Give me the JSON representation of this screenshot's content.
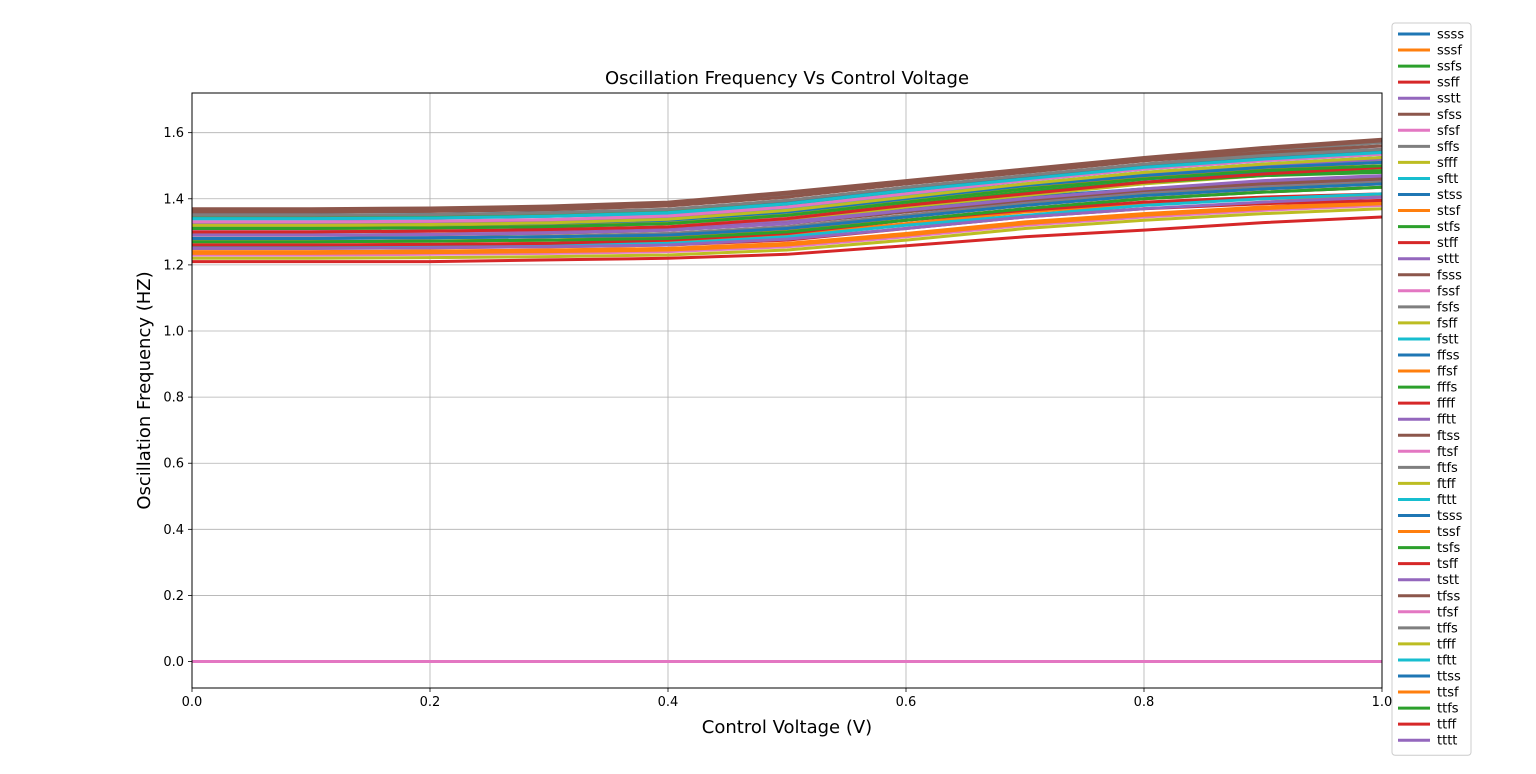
{
  "chart_data": {
    "type": "line",
    "title": "Oscillation Frequency Vs Control Voltage",
    "xlabel": "Control Voltage (V)",
    "ylabel": "Oscillation Frequency (HZ)",
    "xlim": [
      0.0,
      1.0
    ],
    "ylim": [
      -0.08,
      1.72
    ],
    "x_ticks": [
      "0.0",
      "0.2",
      "0.4",
      "0.6",
      "0.8",
      "1.0"
    ],
    "y_ticks": [
      "0.0",
      "0.2",
      "0.4",
      "0.6",
      "0.8",
      "1.0",
      "1.2",
      "1.4",
      "1.6"
    ],
    "grid": true,
    "legend_position": "right, outside plot",
    "x": [
      0.0,
      0.1,
      0.2,
      0.3,
      0.4,
      0.5,
      0.6,
      0.7,
      0.8,
      0.9,
      1.0
    ],
    "palette": [
      "#1f77b4",
      "#ff7f0e",
      "#2ca02c",
      "#d62728",
      "#9467bd",
      "#8c564b",
      "#e377c2",
      "#7f7f7f",
      "#bcbd22",
      "#17becf"
    ],
    "series": [
      {
        "name": "ssss",
        "values": [
          1.3,
          1.3,
          1.302,
          1.305,
          1.31,
          1.33,
          1.37,
          1.405,
          1.43,
          1.445,
          1.46
        ]
      },
      {
        "name": "sssf",
        "values": [
          1.24,
          1.24,
          1.242,
          1.245,
          1.25,
          1.265,
          1.295,
          1.33,
          1.355,
          1.375,
          1.39
        ]
      },
      {
        "name": "ssfs",
        "values": [
          1.31,
          1.31,
          1.312,
          1.315,
          1.325,
          1.35,
          1.39,
          1.425,
          1.45,
          1.47,
          1.48
        ]
      },
      {
        "name": "ssff",
        "values": [
          1.25,
          1.25,
          1.252,
          1.255,
          1.26,
          1.275,
          1.31,
          1.345,
          1.37,
          1.385,
          1.395
        ]
      },
      {
        "name": "sstt",
        "values": [
          1.28,
          1.28,
          1.282,
          1.285,
          1.295,
          1.315,
          1.35,
          1.39,
          1.42,
          1.44,
          1.455
        ]
      },
      {
        "name": "sfss",
        "values": [
          1.37,
          1.37,
          1.372,
          1.378,
          1.39,
          1.42,
          1.455,
          1.49,
          1.525,
          1.555,
          1.58
        ]
      },
      {
        "name": "sfsf",
        "values": [
          1.3,
          1.3,
          1.302,
          1.305,
          1.315,
          1.345,
          1.39,
          1.43,
          1.46,
          1.48,
          1.5
        ]
      },
      {
        "name": "sffs",
        "values": [
          1.36,
          1.36,
          1.362,
          1.368,
          1.38,
          1.41,
          1.445,
          1.48,
          1.515,
          1.545,
          1.57
        ]
      },
      {
        "name": "sfff",
        "values": [
          1.29,
          1.29,
          1.292,
          1.295,
          1.305,
          1.335,
          1.375,
          1.41,
          1.445,
          1.47,
          1.49
        ]
      },
      {
        "name": "sftt",
        "values": [
          1.33,
          1.33,
          1.332,
          1.337,
          1.345,
          1.37,
          1.41,
          1.445,
          1.48,
          1.505,
          1.525
        ]
      },
      {
        "name": "stss",
        "values": [
          1.33,
          1.33,
          1.332,
          1.335,
          1.34,
          1.36,
          1.395,
          1.43,
          1.46,
          1.48,
          1.495
        ]
      },
      {
        "name": "stsf",
        "values": [
          1.26,
          1.26,
          1.262,
          1.265,
          1.27,
          1.29,
          1.325,
          1.36,
          1.385,
          1.4,
          1.41
        ]
      },
      {
        "name": "stfs",
        "values": [
          1.32,
          1.32,
          1.322,
          1.325,
          1.33,
          1.35,
          1.385,
          1.42,
          1.45,
          1.47,
          1.485
        ]
      },
      {
        "name": "stff",
        "values": [
          1.27,
          1.27,
          1.272,
          1.275,
          1.28,
          1.3,
          1.335,
          1.365,
          1.39,
          1.405,
          1.415
        ]
      },
      {
        "name": "sttt",
        "values": [
          1.3,
          1.3,
          1.302,
          1.305,
          1.31,
          1.33,
          1.365,
          1.4,
          1.43,
          1.45,
          1.465
        ]
      },
      {
        "name": "fsss",
        "values": [
          1.365,
          1.365,
          1.368,
          1.374,
          1.385,
          1.415,
          1.45,
          1.485,
          1.52,
          1.55,
          1.575
        ]
      },
      {
        "name": "fssf",
        "values": [
          1.34,
          1.34,
          1.342,
          1.347,
          1.355,
          1.385,
          1.425,
          1.465,
          1.5,
          1.53,
          1.55
        ]
      },
      {
        "name": "fsfs",
        "values": [
          1.35,
          1.35,
          1.352,
          1.358,
          1.368,
          1.395,
          1.435,
          1.47,
          1.505,
          1.535,
          1.56
        ]
      },
      {
        "name": "fsff",
        "values": [
          1.315,
          1.315,
          1.317,
          1.322,
          1.33,
          1.355,
          1.395,
          1.435,
          1.47,
          1.495,
          1.515
        ]
      },
      {
        "name": "fstt",
        "values": [
          1.34,
          1.34,
          1.342,
          1.347,
          1.355,
          1.38,
          1.42,
          1.455,
          1.49,
          1.515,
          1.535
        ]
      },
      {
        "name": "ffss",
        "values": [
          1.35,
          1.35,
          1.352,
          1.357,
          1.365,
          1.39,
          1.43,
          1.465,
          1.5,
          1.525,
          1.545
        ]
      },
      {
        "name": "ffsf",
        "values": [
          1.31,
          1.31,
          1.312,
          1.317,
          1.325,
          1.35,
          1.39,
          1.43,
          1.465,
          1.49,
          1.51
        ]
      },
      {
        "name": "fffs",
        "values": [
          1.345,
          1.345,
          1.347,
          1.352,
          1.36,
          1.385,
          1.425,
          1.46,
          1.495,
          1.52,
          1.54
        ]
      },
      {
        "name": "ffff",
        "values": [
          1.3,
          1.3,
          1.302,
          1.307,
          1.315,
          1.34,
          1.38,
          1.415,
          1.45,
          1.475,
          1.495
        ]
      },
      {
        "name": "fftt",
        "values": [
          1.325,
          1.325,
          1.327,
          1.332,
          1.34,
          1.365,
          1.405,
          1.44,
          1.475,
          1.5,
          1.52
        ]
      },
      {
        "name": "ftss",
        "values": [
          1.29,
          1.29,
          1.292,
          1.296,
          1.305,
          1.325,
          1.36,
          1.395,
          1.425,
          1.445,
          1.46
        ]
      },
      {
        "name": "ftsf",
        "values": [
          1.23,
          1.23,
          1.232,
          1.235,
          1.24,
          1.255,
          1.285,
          1.32,
          1.345,
          1.365,
          1.38
        ]
      },
      {
        "name": "ftfs",
        "values": [
          1.28,
          1.28,
          1.282,
          1.286,
          1.295,
          1.315,
          1.35,
          1.385,
          1.415,
          1.435,
          1.45
        ]
      },
      {
        "name": "ftff",
        "values": [
          1.22,
          1.22,
          1.222,
          1.225,
          1.23,
          1.245,
          1.275,
          1.31,
          1.335,
          1.355,
          1.37
        ]
      },
      {
        "name": "fttt",
        "values": [
          1.255,
          1.255,
          1.257,
          1.26,
          1.265,
          1.285,
          1.32,
          1.35,
          1.38,
          1.4,
          1.415
        ]
      },
      {
        "name": "tsss",
        "values": [
          1.32,
          1.32,
          1.322,
          1.326,
          1.335,
          1.36,
          1.4,
          1.44,
          1.47,
          1.495,
          1.51
        ]
      },
      {
        "name": "tssf",
        "values": [
          1.27,
          1.27,
          1.272,
          1.275,
          1.285,
          1.305,
          1.345,
          1.38,
          1.41,
          1.43,
          1.445
        ]
      },
      {
        "name": "tsfs",
        "values": [
          1.31,
          1.31,
          1.312,
          1.316,
          1.325,
          1.35,
          1.39,
          1.43,
          1.46,
          1.485,
          1.5
        ]
      },
      {
        "name": "tsff",
        "values": [
          1.26,
          1.26,
          1.262,
          1.265,
          1.275,
          1.295,
          1.335,
          1.37,
          1.4,
          1.42,
          1.435
        ]
      },
      {
        "name": "tstt",
        "values": [
          1.29,
          1.29,
          1.292,
          1.296,
          1.305,
          1.325,
          1.365,
          1.4,
          1.43,
          1.455,
          1.47
        ]
      },
      {
        "name": "tfss",
        "values": [
          1.36,
          1.36,
          1.362,
          1.367,
          1.378,
          1.405,
          1.445,
          1.48,
          1.515,
          1.54,
          1.56
        ]
      },
      {
        "name": "tfsf",
        "values": [
          1.33,
          1.33,
          1.332,
          1.337,
          1.348,
          1.375,
          1.415,
          1.455,
          1.49,
          1.515,
          1.535
        ]
      },
      {
        "name": "tffs",
        "values": [
          1.35,
          1.35,
          1.352,
          1.357,
          1.368,
          1.395,
          1.435,
          1.47,
          1.505,
          1.53,
          1.55
        ]
      },
      {
        "name": "tfff",
        "values": [
          1.32,
          1.32,
          1.322,
          1.327,
          1.338,
          1.365,
          1.405,
          1.445,
          1.48,
          1.505,
          1.525
        ]
      },
      {
        "name": "tftt",
        "values": [
          1.34,
          1.34,
          1.342,
          1.347,
          1.358,
          1.385,
          1.425,
          1.46,
          1.495,
          1.52,
          1.54
        ]
      },
      {
        "name": "ttss",
        "values": [
          1.28,
          1.28,
          1.282,
          1.285,
          1.29,
          1.31,
          1.345,
          1.38,
          1.41,
          1.43,
          1.445
        ]
      },
      {
        "name": "ttsf",
        "values": [
          1.235,
          1.235,
          1.237,
          1.24,
          1.245,
          1.26,
          1.29,
          1.325,
          1.35,
          1.37,
          1.385
        ]
      },
      {
        "name": "ttfs",
        "values": [
          1.27,
          1.27,
          1.272,
          1.275,
          1.28,
          1.3,
          1.335,
          1.37,
          1.4,
          1.42,
          1.435
        ]
      },
      {
        "name": "ttff",
        "values": [
          1.21,
          1.21,
          1.21,
          1.215,
          1.22,
          1.232,
          1.258,
          1.285,
          1.305,
          1.328,
          1.345
        ]
      },
      {
        "name": "tttt",
        "values": [
          1.25,
          1.25,
          1.252,
          1.255,
          1.26,
          1.278,
          1.31,
          1.345,
          1.37,
          1.39,
          1.405
        ]
      },
      {
        "name": "",
        "values": [
          0.0,
          0.0,
          0.0,
          0.0,
          0.0,
          0.0,
          0.0,
          0.0,
          0.0,
          0.0,
          0.0
        ]
      }
    ]
  }
}
